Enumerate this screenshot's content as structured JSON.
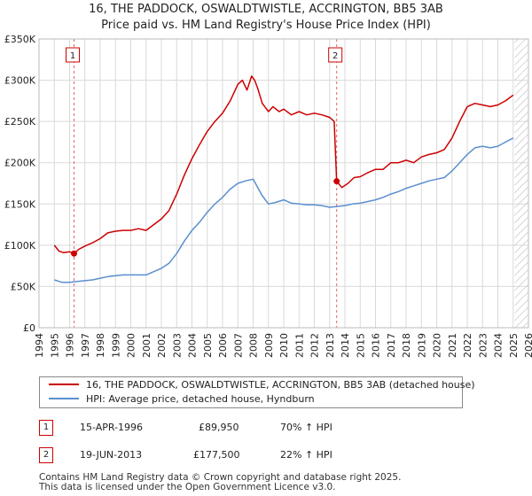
{
  "chart_data": {
    "type": "line",
    "title": "16, THE PADDOCK, OSWALDTWISTLE, ACCRINGTON, BB5 3AB",
    "subtitle": "Price paid vs. HM Land Registry's House Price Index (HPI)",
    "xlabel": "",
    "ylabel": "",
    "xlim": [
      1994,
      2026
    ],
    "ylim": [
      0,
      350000
    ],
    "x_ticks": [
      1994,
      1995,
      1996,
      1997,
      1998,
      1999,
      2000,
      2001,
      2002,
      2003,
      2004,
      2005,
      2006,
      2007,
      2008,
      2009,
      2010,
      2011,
      2012,
      2013,
      2014,
      2015,
      2016,
      2017,
      2018,
      2019,
      2020,
      2021,
      2022,
      2023,
      2024,
      2025,
      2026
    ],
    "y_ticks": [
      {
        "value": 0,
        "label": "£0"
      },
      {
        "value": 50000,
        "label": "£50K"
      },
      {
        "value": 100000,
        "label": "£100K"
      },
      {
        "value": 150000,
        "label": "£150K"
      },
      {
        "value": 200000,
        "label": "£200K"
      },
      {
        "value": 250000,
        "label": "£250K"
      },
      {
        "value": 300000,
        "label": "£300K"
      },
      {
        "value": 350000,
        "label": "£350K"
      }
    ],
    "grid": true,
    "series": [
      {
        "name": "16, THE PADDOCK, OSWALDTWISTLE, ACCRINGTON, BB5 3AB (detached house)",
        "color": "#cc0000",
        "x": [
          1995.0,
          1995.3,
          1995.6,
          1996.0,
          1996.29,
          1996.6,
          1997.0,
          1997.5,
          1998.0,
          1998.5,
          1999.0,
          1999.5,
          2000.0,
          2000.5,
          2001.0,
          2001.5,
          2002.0,
          2002.5,
          2003.0,
          2003.5,
          2004.0,
          2004.5,
          2005.0,
          2005.5,
          2006.0,
          2006.5,
          2007.0,
          2007.3,
          2007.6,
          2007.9,
          2008.1,
          2008.3,
          2008.6,
          2009.0,
          2009.3,
          2009.7,
          2010.0,
          2010.5,
          2011.0,
          2011.5,
          2012.0,
          2012.5,
          2013.0,
          2013.3,
          2013.46,
          2013.8,
          2014.2,
          2014.6,
          2015.0,
          2015.5,
          2016.0,
          2016.5,
          2017.0,
          2017.5,
          2018.0,
          2018.5,
          2019.0,
          2019.5,
          2020.0,
          2020.5,
          2021.0,
          2021.5,
          2022.0,
          2022.5,
          2023.0,
          2023.5,
          2024.0,
          2024.5,
          2025.0
        ],
        "y": [
          100000,
          93000,
          91000,
          92000,
          89950,
          95000,
          99000,
          103000,
          108000,
          115000,
          117000,
          118000,
          118000,
          120000,
          118000,
          125000,
          132000,
          142000,
          162000,
          185000,
          205000,
          222000,
          238000,
          250000,
          260000,
          275000,
          295000,
          300000,
          288000,
          305000,
          300000,
          290000,
          272000,
          262000,
          268000,
          262000,
          265000,
          258000,
          262000,
          258000,
          260000,
          258000,
          255000,
          250000,
          177500,
          170000,
          175000,
          182000,
          183000,
          188000,
          192000,
          192000,
          200000,
          200000,
          203000,
          200000,
          207000,
          210000,
          212000,
          216000,
          230000,
          250000,
          268000,
          272000,
          270000,
          268000,
          270000,
          275000,
          282000
        ]
      },
      {
        "name": "HPI: Average price, detached house, Hyndburn",
        "color": "#5b8fce",
        "x": [
          1995.0,
          1995.5,
          1996.0,
          1996.5,
          1997.0,
          1997.5,
          1998.0,
          1998.5,
          1999.0,
          1999.5,
          2000.0,
          2000.5,
          2001.0,
          2001.5,
          2002.0,
          2002.5,
          2003.0,
          2003.5,
          2004.0,
          2004.5,
          2005.0,
          2005.5,
          2006.0,
          2006.5,
          2007.0,
          2007.5,
          2008.0,
          2008.3,
          2008.6,
          2009.0,
          2009.5,
          2010.0,
          2010.5,
          2011.0,
          2011.5,
          2012.0,
          2012.5,
          2013.0,
          2013.5,
          2014.0,
          2014.5,
          2015.0,
          2015.5,
          2016.0,
          2016.5,
          2017.0,
          2017.5,
          2018.0,
          2018.5,
          2019.0,
          2019.5,
          2020.0,
          2020.5,
          2021.0,
          2021.5,
          2022.0,
          2022.5,
          2023.0,
          2023.5,
          2024.0,
          2024.5,
          2025.0
        ],
        "y": [
          58000,
          55000,
          55000,
          56000,
          57000,
          58000,
          60000,
          62000,
          63000,
          64000,
          64000,
          64000,
          64000,
          68000,
          72000,
          78000,
          90000,
          105000,
          118000,
          128000,
          140000,
          150000,
          158000,
          168000,
          175000,
          178000,
          180000,
          170000,
          160000,
          150000,
          152000,
          155000,
          151000,
          150000,
          149000,
          149000,
          148000,
          146000,
          147000,
          148000,
          150000,
          151000,
          153000,
          155000,
          158000,
          162000,
          165000,
          169000,
          172000,
          175000,
          178000,
          180000,
          182000,
          190000,
          200000,
          210000,
          218000,
          220000,
          218000,
          220000,
          225000,
          230000
        ]
      }
    ],
    "annotations": [
      {
        "label": "1",
        "x": 1996.29,
        "y": 89950
      },
      {
        "label": "2",
        "x": 2013.46,
        "y": 177500
      }
    ]
  },
  "legend": [
    {
      "label": "16, THE PADDOCK, OSWALDTWISTLE, ACCRINGTON, BB5 3AB (detached house)",
      "color": "#cc0000"
    },
    {
      "label": "HPI: Average price, detached house, Hyndburn",
      "color": "#5b8fce"
    }
  ],
  "transactions": [
    {
      "id": "1",
      "date": "15-APR-1996",
      "price": "£89,950",
      "hpi": "70% ↑ HPI"
    },
    {
      "id": "2",
      "date": "19-JUN-2013",
      "price": "£177,500",
      "hpi": "22% ↑ HPI"
    }
  ],
  "footer": {
    "line1": "Contains HM Land Registry data © Crown copyright and database right 2025.",
    "line2": "This data is licensed under the Open Government Licence v3.0."
  }
}
